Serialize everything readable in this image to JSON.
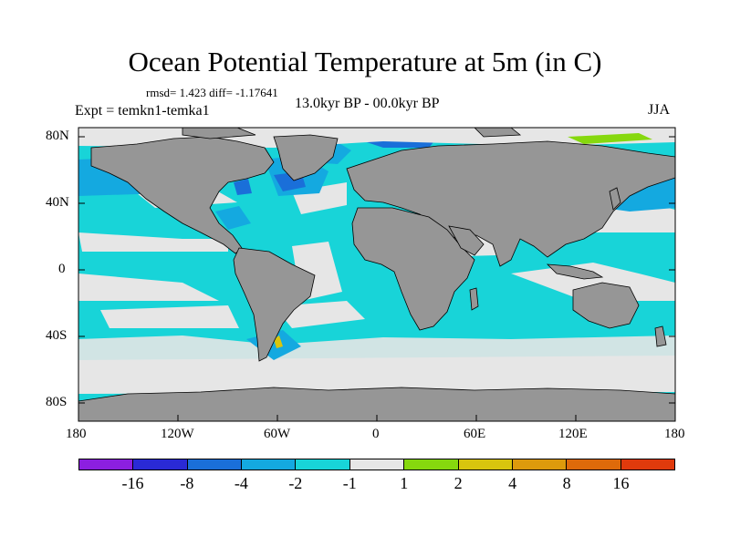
{
  "title": "Ocean Potential Temperature at 5m (in C)",
  "stats": "rmsd= 1.423 diff= -1.17641",
  "experiment": "Expt = temkn1-temka1",
  "period": "13.0kyr BP - 00.0kyr BP",
  "season": "JJA",
  "axes": {
    "x_ticks": [
      "180",
      "120W",
      "60W",
      "0",
      "60E",
      "120E",
      "180"
    ],
    "y_ticks": [
      "80N",
      "40N",
      "0",
      "40S",
      "80S"
    ]
  },
  "colorbar": {
    "colors": [
      "#8c1fe0",
      "#2a2ad6",
      "#1a6fd9",
      "#14a9e0",
      "#18d4d8",
      "#e6e6e6",
      "#86d80e",
      "#d8c50e",
      "#dd9a0c",
      "#de6a0a",
      "#e03a0c"
    ],
    "labels": [
      "-16",
      "-8",
      "-4",
      "-2",
      "-1",
      "1",
      "2",
      "4",
      "8",
      "16"
    ]
  },
  "colors": {
    "land": "#969696",
    "cyan": "#18d4d8",
    "light_blue": "#14a9e0",
    "blue": "#1a6fd9",
    "grey_band": "#e6e6e6",
    "green": "#86d80e",
    "yellow": "#d8c50e"
  }
}
